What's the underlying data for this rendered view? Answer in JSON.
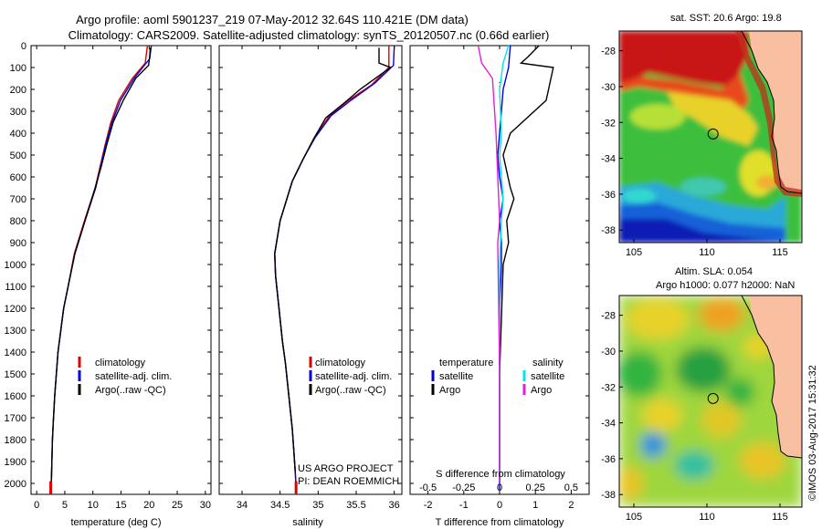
{
  "header": {
    "line1": "Argo profile: aoml 5901237_219 07-May-2012 32.64S 110.421E (DM data)",
    "line2": "Climatology: CARS2009. Satellite-adjusted climatology: synTS_20120507.nc (0.66d earlier)"
  },
  "colors": {
    "climatology": "#dd0000",
    "satellite": "#0000dd",
    "argo": "#000000",
    "sal_satellite": "#00e5e5",
    "sal_argo": "#e020e0"
  },
  "chart_data": [
    {
      "type": "line",
      "id": "temperature",
      "xlabel": "temperature (deg C)",
      "ylabel": "",
      "xlim": [
        -1,
        31
      ],
      "ylim": [
        2050,
        0
      ],
      "xticks": [
        0,
        5,
        10,
        15,
        20,
        25,
        30
      ],
      "yticks": [
        0,
        100,
        200,
        300,
        400,
        500,
        600,
        700,
        800,
        900,
        1000,
        1100,
        1200,
        1300,
        1400,
        1500,
        1600,
        1700,
        1800,
        1900,
        2000
      ],
      "legend": [
        "climatology",
        "satellite-adj. clim.",
        "Argo(..raw -QC)"
      ],
      "series": [
        {
          "name": "climatology",
          "color": "#dd0000",
          "x": [
            19.7,
            19.3,
            17.0,
            14.6,
            13.2,
            12.2,
            11.3,
            10.4,
            8.5,
            6.7,
            5.6,
            4.8,
            4.3,
            3.8,
            3.5,
            3.2,
            3.0,
            2.8,
            2.7,
            2.6,
            2.5,
            2.5
          ],
          "y": [
            0,
            80,
            150,
            250,
            350,
            450,
            550,
            650,
            800,
            950,
            1100,
            1200,
            1300,
            1400,
            1500,
            1600,
            1700,
            1800,
            1900,
            2000,
            2030,
            2050
          ]
        },
        {
          "name": "satellite-adj. clim.",
          "color": "#0000dd",
          "x": [
            20.4,
            20.1,
            17.3,
            14.9,
            13.4,
            12.3,
            11.4,
            10.5,
            8.6,
            6.8,
            5.6,
            4.8,
            4.3,
            3.8,
            3.5,
            3.2,
            3.0,
            2.8,
            2.7,
            2.6,
            2.5
          ],
          "y": [
            0,
            60,
            150,
            250,
            350,
            450,
            550,
            650,
            800,
            950,
            1100,
            1200,
            1300,
            1400,
            1500,
            1600,
            1700,
            1800,
            1900,
            2000,
            2030
          ]
        },
        {
          "name": "Argo(..raw -QC)",
          "color": "#000000",
          "x": [
            20.2,
            20.1,
            19.9,
            17.6,
            15.4,
            13.6,
            12.5,
            11.5,
            10.4,
            8.6,
            6.8,
            5.6,
            4.8,
            4.3,
            3.8,
            3.5,
            3.2,
            3.0,
            2.8,
            2.7,
            2.6
          ],
          "y": [
            10,
            50,
            90,
            150,
            250,
            350,
            450,
            550,
            650,
            800,
            950,
            1100,
            1200,
            1300,
            1400,
            1500,
            1600,
            1700,
            1800,
            1900,
            2000
          ]
        }
      ]
    },
    {
      "type": "line",
      "id": "salinity",
      "xlabel": "salinity",
      "ylabel": "",
      "xlim": [
        33.7,
        36.1
      ],
      "ylim": [
        2050,
        0
      ],
      "xticks": [
        34,
        34.5,
        35,
        35.5,
        36
      ],
      "legend": [
        "climatology",
        "satellite-adj. clim.",
        "Argo(..raw -QC)"
      ],
      "note": [
        "US ARGO PROJECT",
        "PI: DEAN ROEMMICH"
      ],
      "series": [
        {
          "name": "climatology",
          "color": "#dd0000",
          "x": [
            35.93,
            35.93,
            35.7,
            35.4,
            35.15,
            34.95,
            34.8,
            34.66,
            34.5,
            34.43,
            34.44,
            34.47,
            34.5,
            34.53,
            34.57,
            34.6,
            34.63,
            34.66,
            34.68,
            34.7,
            34.71,
            34.71
          ],
          "y": [
            0,
            100,
            180,
            250,
            320,
            420,
            520,
            620,
            800,
            950,
            1050,
            1150,
            1250,
            1350,
            1450,
            1550,
            1650,
            1750,
            1850,
            1950,
            2020,
            2050
          ]
        },
        {
          "name": "satellite-adj. clim.",
          "color": "#0000dd",
          "x": [
            36.0,
            35.99,
            35.75,
            35.43,
            35.17,
            34.96,
            34.8,
            34.66,
            34.5,
            34.43,
            34.44,
            34.47,
            34.5,
            34.53,
            34.57,
            34.6,
            34.63,
            34.66,
            34.68,
            34.7,
            34.71
          ],
          "y": [
            0,
            90,
            170,
            250,
            320,
            420,
            520,
            620,
            800,
            950,
            1050,
            1150,
            1250,
            1350,
            1450,
            1550,
            1650,
            1750,
            1850,
            1950,
            2020
          ]
        },
        {
          "name": "Argo(..raw -QC)",
          "color": "#000000",
          "x": [
            35.8,
            35.8,
            35.95,
            35.55,
            35.35,
            35.1,
            34.95,
            34.8,
            34.66,
            34.5,
            34.43,
            34.44,
            34.47,
            34.5,
            34.53,
            34.57,
            34.6,
            34.63,
            34.66,
            34.68,
            34.7
          ],
          "y": [
            10,
            80,
            100,
            200,
            260,
            330,
            420,
            520,
            620,
            800,
            950,
            1050,
            1150,
            1250,
            1350,
            1450,
            1550,
            1650,
            1750,
            1850,
            1950
          ]
        }
      ]
    },
    {
      "type": "line",
      "id": "difference",
      "xlabel": "T difference from climatology",
      "xlabel_top": "S difference from climatology",
      "xlim": [
        -2.5,
        2.5
      ],
      "ylim": [
        2050,
        0
      ],
      "xticks": [
        -2,
        -1,
        0,
        1,
        2
      ],
      "xticks_s_labels": [
        "-0.5",
        "-0.25",
        "0",
        "0.25",
        "0.5"
      ],
      "xticks_s_values": [
        -2,
        -1,
        0,
        1,
        2
      ],
      "legend_titles": [
        "temperature",
        "salinity"
      ],
      "legend": [
        "satellite",
        "Argo",
        "satellite",
        "Argo"
      ],
      "series": [
        {
          "name": "T satellite",
          "color": "#0000dd",
          "x": [
            0.3,
            0.25,
            0.1,
            0.05,
            0.0,
            -0.05,
            0.0,
            0.1,
            0.0,
            0.05,
            0.05,
            0.0,
            0.0,
            0.0
          ],
          "y": [
            0,
            100,
            200,
            300,
            400,
            500,
            600,
            700,
            800,
            900,
            1000,
            1200,
            1600,
            2030
          ]
        },
        {
          "name": "T Argo",
          "color": "#000000",
          "x": [
            1.1,
            0.8,
            0.6,
            1.5,
            1.3,
            0.3,
            0.1,
            0.3,
            0.4,
            0.2,
            0.25,
            0.1,
            0.0,
            0.0
          ],
          "y": [
            0,
            50,
            80,
            100,
            250,
            400,
            500,
            650,
            700,
            800,
            900,
            1000,
            1500,
            2000
          ]
        },
        {
          "name": "S satellite",
          "color": "#00e5e5",
          "x": [
            0.25,
            0.1,
            0.0,
            0.05,
            0.0,
            0.05,
            0.1,
            0.05,
            0.0,
            0.0,
            0.0
          ],
          "y": [
            0,
            80,
            200,
            400,
            500,
            600,
            700,
            800,
            1000,
            1500,
            2000
          ]
        },
        {
          "name": "S Argo",
          "color": "#e020e0",
          "x": [
            -0.6,
            -0.5,
            -0.2,
            -0.1,
            -0.05,
            0.0,
            -0.05,
            0.0,
            0.0
          ],
          "y": [
            0,
            80,
            150,
            400,
            600,
            800,
            900,
            1500,
            2000
          ]
        }
      ]
    },
    {
      "type": "heatmap",
      "id": "sst_map",
      "title": "sat. SST: 20.6 Argo: 19.8",
      "xlim": [
        104,
        116.5
      ],
      "ylim": [
        -38.7,
        -26.9
      ],
      "xticks": [
        105,
        110,
        115
      ],
      "yticks": [
        -28,
        -30,
        -32,
        -34,
        -36,
        -38
      ],
      "profile_lon": 110.421,
      "profile_lat": -32.64
    },
    {
      "type": "heatmap",
      "id": "sla_map",
      "title": "Altim. SLA: 0.054",
      "subtitle": "Argo h1000: 0.077 h2000: NaN",
      "xlim": [
        104,
        116.5
      ],
      "ylim": [
        -38.7,
        -26.9
      ],
      "xticks": [
        105,
        110,
        115
      ],
      "yticks": [
        -28,
        -30,
        -32,
        -34,
        -36,
        -38
      ],
      "profile_lon": 110.421,
      "profile_lat": -32.64
    }
  ],
  "footer": {
    "stamp": "©IMOS 03-Aug-2017 15:31:32"
  }
}
